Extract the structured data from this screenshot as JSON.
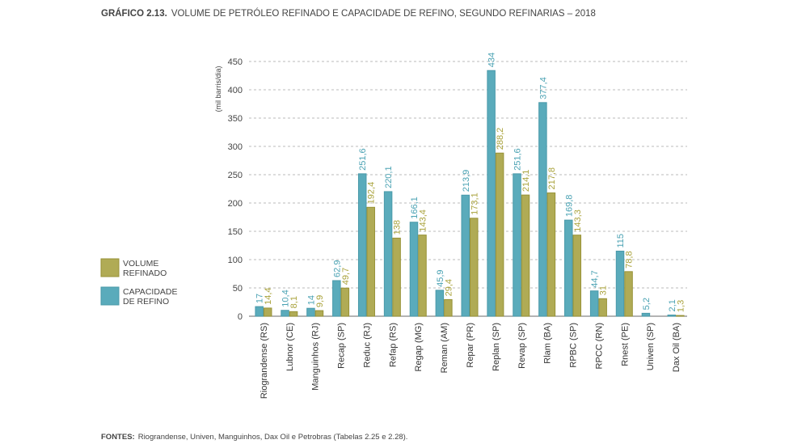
{
  "chart_data": {
    "type": "bar",
    "title_prefix": "GRÁFICO 2.13.",
    "title": "VOLUME DE PETRÓLEO REFINADO E CAPACIDADE DE REFINO, SEGUNDO REFINARIAS – 2018",
    "ylabel": "(mil barris/dia)",
    "xlabel": "",
    "ylim": [
      0,
      450
    ],
    "yticks": [
      0,
      50,
      100,
      150,
      200,
      250,
      300,
      350,
      400,
      450
    ],
    "grid": true,
    "legend_placement": "left",
    "categories": [
      "Riograndense (RS)",
      "Lubnor (CE)",
      "Manguinhos (RJ)",
      "Recap (SP)",
      "Reduc (RJ)",
      "Refap (RS)",
      "Regap (MG)",
      "Reman (AM)",
      "Repar (PR)",
      "Replan (SP)",
      "Revap (SP)",
      "Rlam (BA)",
      "RPBC (SP)",
      "RPCC (RN)",
      "Rnest (PE)",
      "Univen (SP)",
      "Dax Oil (BA)"
    ],
    "series": [
      {
        "name": "CAPACIDADE DE REFINO",
        "color": "#5aabbb",
        "label_color": "#4aa2b3",
        "values": [
          17,
          10.4,
          14,
          62.9,
          251.6,
          220.1,
          166.1,
          45.9,
          213.9,
          434,
          251.6,
          377.4,
          169.8,
          44.7,
          115,
          5.2,
          2.1
        ],
        "labels": [
          "17",
          "10,4",
          "14",
          "62,9",
          "251,6",
          "220,1",
          "166,1",
          "45,9",
          "213,9",
          "434",
          "251,6",
          "377,4",
          "169,8",
          "44,7",
          "115",
          "5,2",
          "2,1"
        ]
      },
      {
        "name": "VOLUME REFINADO",
        "color": "#b0ab55",
        "label_color": "#a9a23b",
        "values": [
          14.4,
          8.1,
          9.9,
          49.7,
          192.4,
          138,
          143.4,
          29.4,
          173.1,
          288.2,
          214.1,
          217.8,
          143.3,
          31,
          78.8,
          null,
          1.3
        ],
        "labels": [
          "14,4",
          "8,1",
          "9,9",
          "49,7",
          "192,4",
          "138",
          "143,4",
          "29,4",
          "173,1",
          "288,2",
          "214,1",
          "217,8",
          "143,3",
          "31",
          "78,8",
          "",
          "1,3"
        ]
      }
    ],
    "legend": [
      {
        "line1": "VOLUME",
        "line2": "REFINADO",
        "color": "#b0ab55"
      },
      {
        "line1": "CAPACIDADE",
        "line2": "DE REFINO",
        "color": "#5aabbb"
      }
    ]
  },
  "footer": {
    "label": "FONTES:",
    "text": "Riograndense, Univen, Manguinhos, Dax Oil e Petrobras (Tabelas 2.25 e 2.28)."
  }
}
